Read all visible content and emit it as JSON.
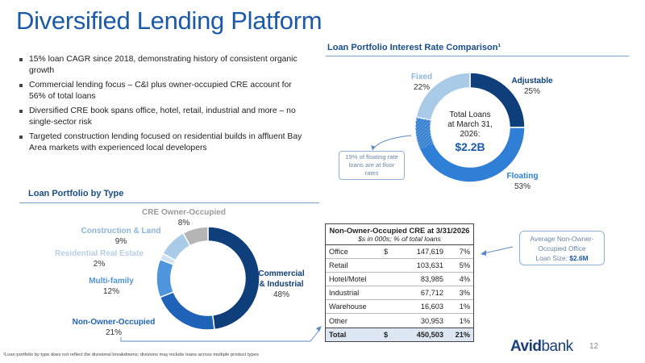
{
  "title": "Diversified Lending Platform",
  "bullets": [
    "15% loan CAGR since 2018, demonstrating history of consistent organic growth",
    "Commercial lending focus – C&I plus owner-occupied CRE account for 56% of total loans",
    "Diversified CRE book spans office, hotel, retail, industrial and more – no single-sector risk",
    "Targeted construction lending focused on residential builds in affluent Bay Area markets with experienced local developers"
  ],
  "rate_chart": {
    "section_title": "Loan Portfolio Interest Rate Comparison¹",
    "center_line1": "Total Loans",
    "center_line2": "at March 31,",
    "center_line3": "2026:",
    "center_amount": "$2.2B",
    "callout": "19% of floating rate loans are at floor rates",
    "labels": {
      "adjustable_name": "Adjustable",
      "adjustable_pct": "25%",
      "floating_name": "Floating",
      "floating_pct": "53%",
      "fixed_name": "Fixed",
      "fixed_pct": "22%"
    },
    "colors": {
      "adjustable": "#0e3f7a",
      "floating": "#2f7fd6",
      "fixed": "#a9cbe8",
      "floor": "#6f9fd0"
    }
  },
  "type_chart": {
    "section_title": "Loan Portfolio by Type",
    "labels": {
      "ci_name1": "Commercial",
      "ci_name2": "& Industrial",
      "ci_pct": "48%",
      "nooc_name": "Non-Owner-Occupied",
      "nooc_pct": "21%",
      "mf_name": "Multi-family",
      "mf_pct": "12%",
      "rre_name": "Residential Real Estate",
      "rre_pct": "2%",
      "cl_name": "Construction & Land",
      "cl_pct": "9%",
      "creoo_name": "CRE Owner-Occupied",
      "creoo_pct": "8%"
    },
    "colors": {
      "ci": "#0e3f7a",
      "nooc": "#1f63b8",
      "mf": "#4f95dd",
      "rre": "#d2e1f1",
      "cl": "#a9cbe8",
      "creoo": "#b5b5b5"
    }
  },
  "chart_data": [
    {
      "type": "pie",
      "title": "Loan Portfolio Interest Rate Comparison¹",
      "categories": [
        "Adjustable",
        "Floating",
        "Fixed"
      ],
      "values": [
        25,
        53,
        22
      ],
      "annotations": [
        "Total Loans at March 31, 2026: $2.2B",
        "19% of floating rate loans are at floor rates"
      ]
    },
    {
      "type": "pie",
      "title": "Loan Portfolio by Type",
      "categories": [
        "Commercial & Industrial",
        "Non-Owner-Occupied",
        "Multi-family",
        "Residential Real Estate",
        "Construction & Land",
        "CRE Owner-Occupied"
      ],
      "values": [
        48,
        21,
        12,
        2,
        9,
        8
      ]
    },
    {
      "type": "table",
      "title": "Non-Owner-Occupied CRE at 3/31/2026",
      "subtitle": "$s in 000s; % of total loans",
      "rows": [
        {
          "label": "Office",
          "currency": "$",
          "amount": "147,619",
          "pct": "7%"
        },
        {
          "label": "Retail",
          "currency": "",
          "amount": "103,631",
          "pct": "5%"
        },
        {
          "label": "Hotel/Motel",
          "currency": "",
          "amount": "83,985",
          "pct": "4%"
        },
        {
          "label": "Industrial",
          "currency": "",
          "amount": "67,712",
          "pct": "3%"
        },
        {
          "label": "Warehouse",
          "currency": "",
          "amount": "16,603",
          "pct": "1%"
        },
        {
          "label": "Other",
          "currency": "",
          "amount": "30,953",
          "pct": "1%"
        }
      ],
      "total": {
        "label": "Total",
        "currency": "$",
        "amount": "450,503",
        "pct": "21%"
      }
    }
  ],
  "avg_box": {
    "line1": "Average Non-Owner-",
    "line2": "Occupied Office",
    "line3": "Loan Size:",
    "value": "$2.6M"
  },
  "footnote": "¹Loan portfolio by type does not reflect the divisional breakdowns; divisions may include loans across multiple product types",
  "logo": {
    "part1": "Avid",
    "part2": "bank"
  },
  "page_number": "12"
}
